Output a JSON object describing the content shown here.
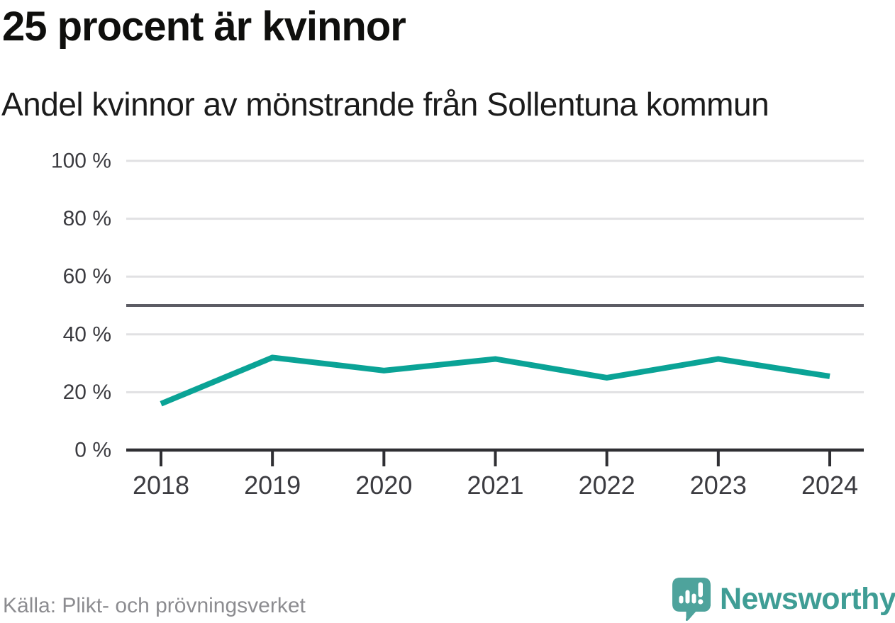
{
  "header": {
    "title": "25 procent är kvinnor",
    "subtitle": "Andel kvinnor av mönstrande från Sollentuna kommun"
  },
  "footer": {
    "source": "Källa: Plikt- och prövningsverket",
    "brand": "Newsworthy"
  },
  "chart_data": {
    "type": "line",
    "title": "25 procent är kvinnor",
    "subtitle": "Andel kvinnor av mönstrande från Sollentuna kommun",
    "x": [
      "2018",
      "2019",
      "2020",
      "2021",
      "2022",
      "2023",
      "2024"
    ],
    "series": [
      {
        "name": "Andel kvinnor av mönstrande",
        "values": [
          16,
          32,
          27.5,
          31.5,
          25,
          31.5,
          25.5
        ]
      }
    ],
    "unit": "%",
    "ylim": [
      0,
      100
    ],
    "y_ticks": [
      {
        "v": 0,
        "label": "0 %"
      },
      {
        "v": 20,
        "label": "20 %"
      },
      {
        "v": 40,
        "label": "40 %"
      },
      {
        "v": 60,
        "label": "60 %"
      },
      {
        "v": 80,
        "label": "80 %"
      },
      {
        "v": 100,
        "label": "100 %"
      }
    ],
    "reference_line": {
      "v": 50
    },
    "grid": true,
    "legend": "none"
  },
  "colors": {
    "line": "#0aa396",
    "grid": "#e1e1e3",
    "reference": "#5c5c64",
    "axis": "#2f2f33",
    "tick_label": "#3b3b40",
    "brand_teal": "#3f9d95",
    "logo_fill": "#4ea39c",
    "logo_fill_dark": "#3a8e87"
  }
}
